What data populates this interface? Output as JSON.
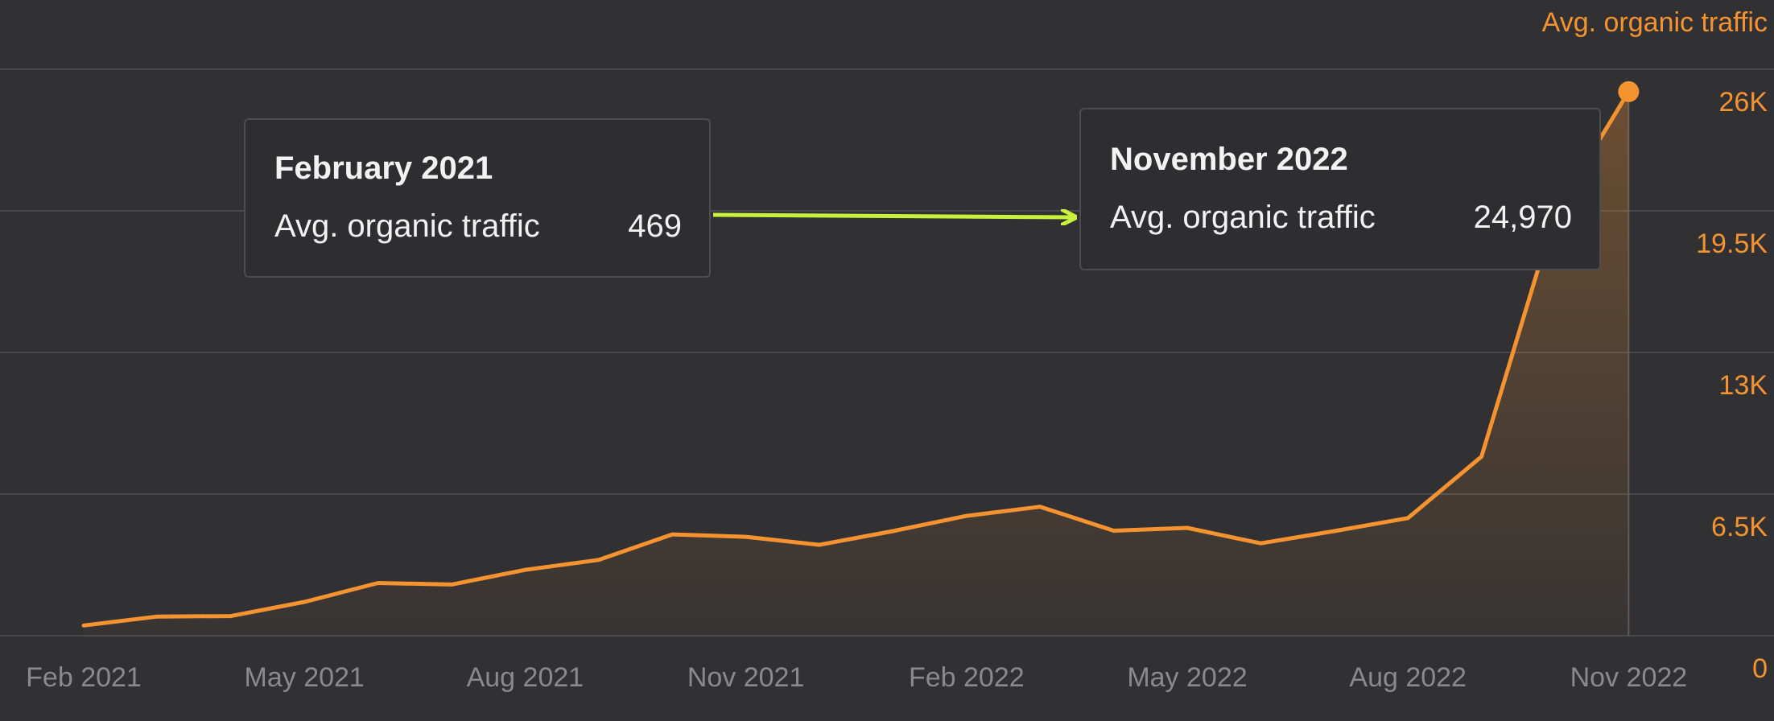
{
  "chart_data": {
    "type": "area",
    "series_name": "Avg. organic traffic",
    "series_label": "Avg. organic traffic",
    "x": [
      "2021-02",
      "2021-03",
      "2021-04",
      "2021-05",
      "2021-06",
      "2021-07",
      "2021-08",
      "2021-09",
      "2021-10",
      "2021-11",
      "2021-12",
      "2022-01",
      "2022-02",
      "2022-03",
      "2022-04",
      "2022-05",
      "2022-06",
      "2022-07",
      "2022-08",
      "2022-09",
      "2022-10",
      "2022-11"
    ],
    "values": [
      469,
      880,
      900,
      1550,
      2420,
      2350,
      3020,
      3480,
      4650,
      4540,
      4170,
      4800,
      5500,
      5920,
      4820,
      4950,
      4240,
      4800,
      5400,
      8220,
      19400,
      24970
    ],
    "x_tick_labels": [
      "Feb 2021",
      "May 2021",
      "Aug 2021",
      "Nov 2021",
      "Feb 2022",
      "May 2022",
      "Aug 2022",
      "Nov 2022"
    ],
    "y_tick_labels": [
      "0",
      "6.5K",
      "13K",
      "19.5K",
      "26K"
    ],
    "y_ticks": [
      0,
      6500,
      13000,
      19500,
      26000
    ],
    "ylim": [
      0,
      26000
    ],
    "grid": true,
    "legend_position": "top-right",
    "line_color": "#f59331",
    "highlight_marker": "end-point"
  },
  "tooltips": [
    {
      "title": "February 2021",
      "label": "Avg. organic traffic",
      "value": "469"
    },
    {
      "title": "November 2022",
      "label": "Avg. organic traffic",
      "value": "24,970"
    }
  ],
  "annotation": {
    "arrow_color": "#c8f03c",
    "direction": "left-to-right"
  },
  "colors": {
    "background": "#313133",
    "grid": "#4a4a4d",
    "x_tick_text": "#8a8a8d",
    "y_tick_text": "#f59331",
    "tooltip_bg": "#2e2e30",
    "tooltip_border": "#4d4d50"
  }
}
